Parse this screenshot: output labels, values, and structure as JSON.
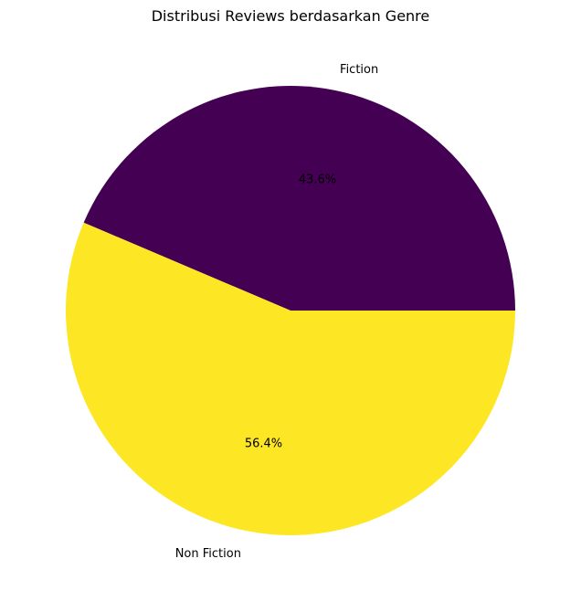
{
  "chart_data": {
    "type": "pie",
    "title": "Distribusi Reviews berdasarkan Genre",
    "slices": [
      {
        "label": "Fiction",
        "value": 43.6,
        "pct_label": "43.6%",
        "color": "#440154"
      },
      {
        "label": "Non Fiction",
        "value": 56.4,
        "pct_label": "56.4%",
        "color": "#fde725"
      }
    ],
    "start_angle_deg": 0,
    "direction": "counterclockwise"
  }
}
